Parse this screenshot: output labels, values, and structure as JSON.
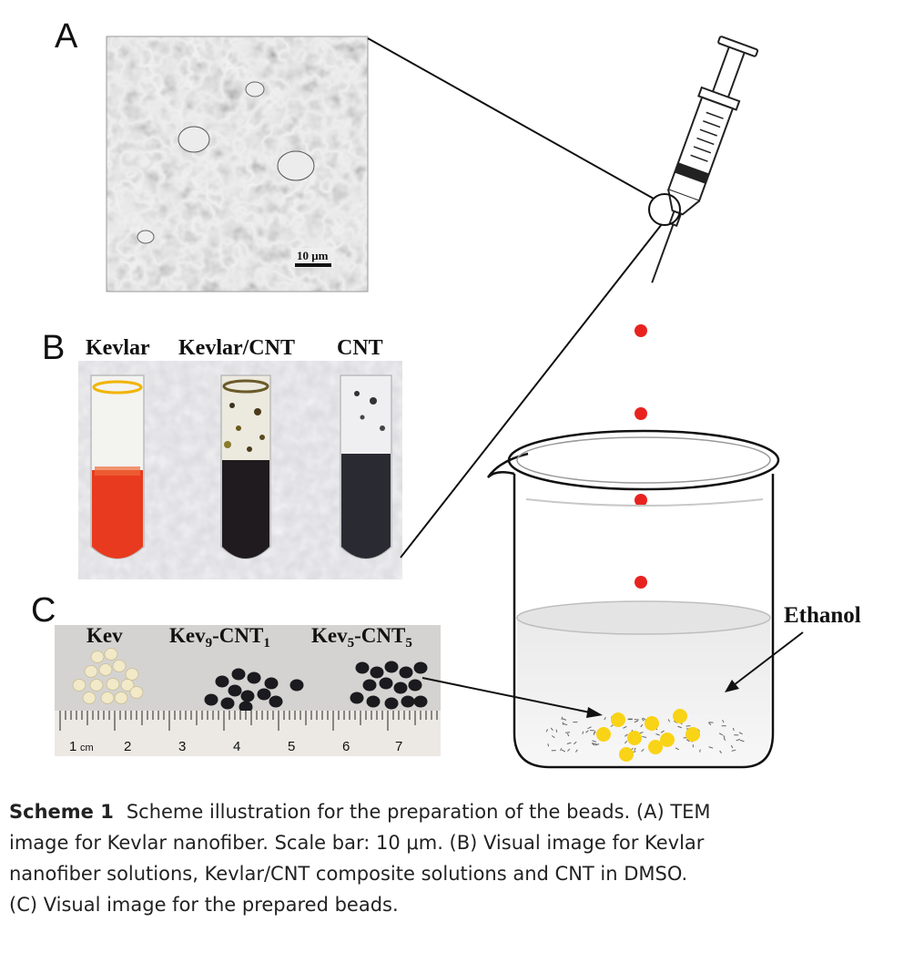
{
  "panels": {
    "a": {
      "letter": "A",
      "scale_bar": "10 μm"
    },
    "b": {
      "letter": "B",
      "tubes": [
        "Kevlar",
        "Kevlar/CNT",
        "CNT"
      ]
    },
    "c": {
      "letter": "C",
      "beads": [
        {
          "base": "Kev",
          "sub1": "",
          "mid": "",
          "sub2": ""
        },
        {
          "base": "Kev",
          "sub1": "9",
          "mid": "-CNT",
          "sub2": "1"
        },
        {
          "base": "Kev",
          "sub1": "5",
          "mid": "-CNT",
          "sub2": "5"
        }
      ],
      "ruler": {
        "numbers": [
          "1",
          "2",
          "3",
          "4",
          "5",
          "6",
          "7"
        ],
        "unit": "cm"
      }
    },
    "beaker": {
      "label": "Ethanol"
    }
  },
  "colors": {
    "drop": "#e8231f",
    "bead": "#f9d316",
    "kevlar_solution": "#e83a1e",
    "cnt_solution": "#2a2a33"
  },
  "caption": {
    "label": "Scheme 1",
    "lines": [
      "Scheme illustration for the preparation of the beads. (A) TEM",
      "image for Kevlar nanofiber. Scale bar: 10 μm. (B) Visual image for Kevlar",
      "nanofiber solutions, Kevlar/CNT composite solutions and CNT in DMSO.",
      "(C) Visual image for the prepared beads."
    ]
  }
}
